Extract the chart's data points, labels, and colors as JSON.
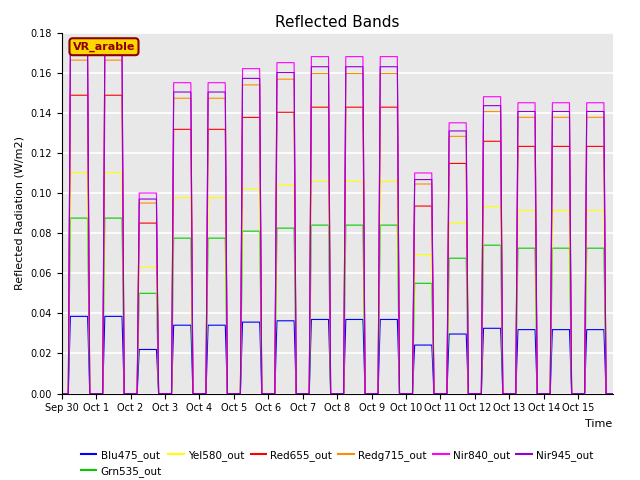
{
  "title": "Reflected Bands",
  "xlabel": "Time",
  "ylabel": "Reflected Radiation (W/m2)",
  "annotation_text": "VR_arable",
  "annotation_color": "#8B0000",
  "annotation_bg": "#FFD700",
  "annotation_border": "#8B0000",
  "ylim": [
    0,
    0.18
  ],
  "yticks": [
    0.0,
    0.02,
    0.04,
    0.06,
    0.08,
    0.1,
    0.12,
    0.14,
    0.16,
    0.18
  ],
  "series": [
    {
      "label": "Blu475_out",
      "color": "#0000FF",
      "peak_scale": 0.22
    },
    {
      "label": "Grn535_out",
      "color": "#00CC00",
      "peak_scale": 0.5
    },
    {
      "label": "Yel580_out",
      "color": "#FFFF00",
      "peak_scale": 0.63
    },
    {
      "label": "Red655_out",
      "color": "#FF0000",
      "peak_scale": 0.85
    },
    {
      "label": "Redg715_out",
      "color": "#FF8C00",
      "peak_scale": 0.95
    },
    {
      "label": "Nir840_out",
      "color": "#FF00FF",
      "peak_scale": 1.0
    },
    {
      "label": "Nir945_out",
      "color": "#9400D3",
      "peak_scale": 0.97
    }
  ],
  "num_days": 16,
  "bg_color": "#E8E8E8",
  "grid_color": "#FFFFFF",
  "day_peaks": [
    0.175,
    0.175,
    0.1,
    0.155,
    0.155,
    0.162,
    0.165,
    0.168,
    0.168,
    0.168,
    0.11,
    0.135,
    0.148,
    0.145,
    0.145,
    0.145
  ],
  "tick_labels": [
    "Sep 30",
    "Oct 1",
    "Oct 2",
    "Oct 3",
    "Oct 4",
    "Oct 5",
    "Oct 6",
    "Oct 7",
    "Oct 8",
    "Oct 9",
    "Oct 10",
    "Oct 11",
    "Oct 12",
    "Oct 13",
    "Oct 14",
    "Oct 15"
  ]
}
